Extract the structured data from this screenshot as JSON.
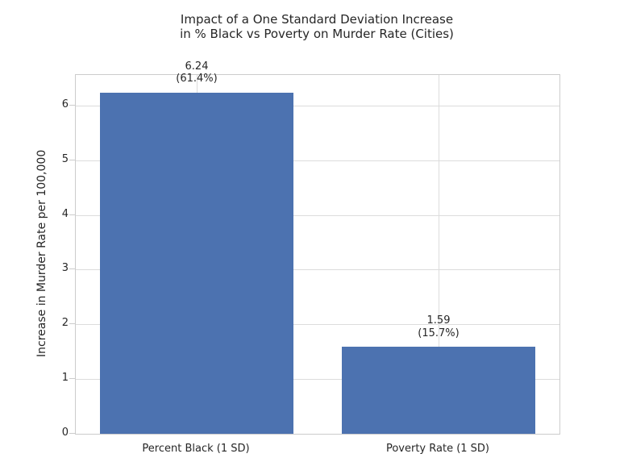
{
  "chart_data": {
    "type": "bar",
    "title_lines": [
      "Impact of a One Standard Deviation Increase",
      "in % Black vs Poverty on Murder Rate (Cities)"
    ],
    "ylabel": "Increase in Murder Rate per 100,000",
    "xlabel": "",
    "categories": [
      "Percent Black (1 SD)",
      "Poverty Rate (1 SD)"
    ],
    "values": [
      6.24,
      1.59
    ],
    "annotations": [
      {
        "value_label": "6.24",
        "pct_label": "(61.4%)"
      },
      {
        "value_label": "1.59",
        "pct_label": "(15.7%)"
      }
    ],
    "yticks": [
      0,
      1,
      2,
      3,
      4,
      5,
      6
    ],
    "ylim": [
      0,
      6.56
    ],
    "grid": true,
    "legend": false,
    "bar_color": "#4c72b0",
    "grid_color": "#dcdcdc",
    "spine_color": "#cccccc",
    "text_color": "#262626",
    "background_color": "#ffffff"
  }
}
